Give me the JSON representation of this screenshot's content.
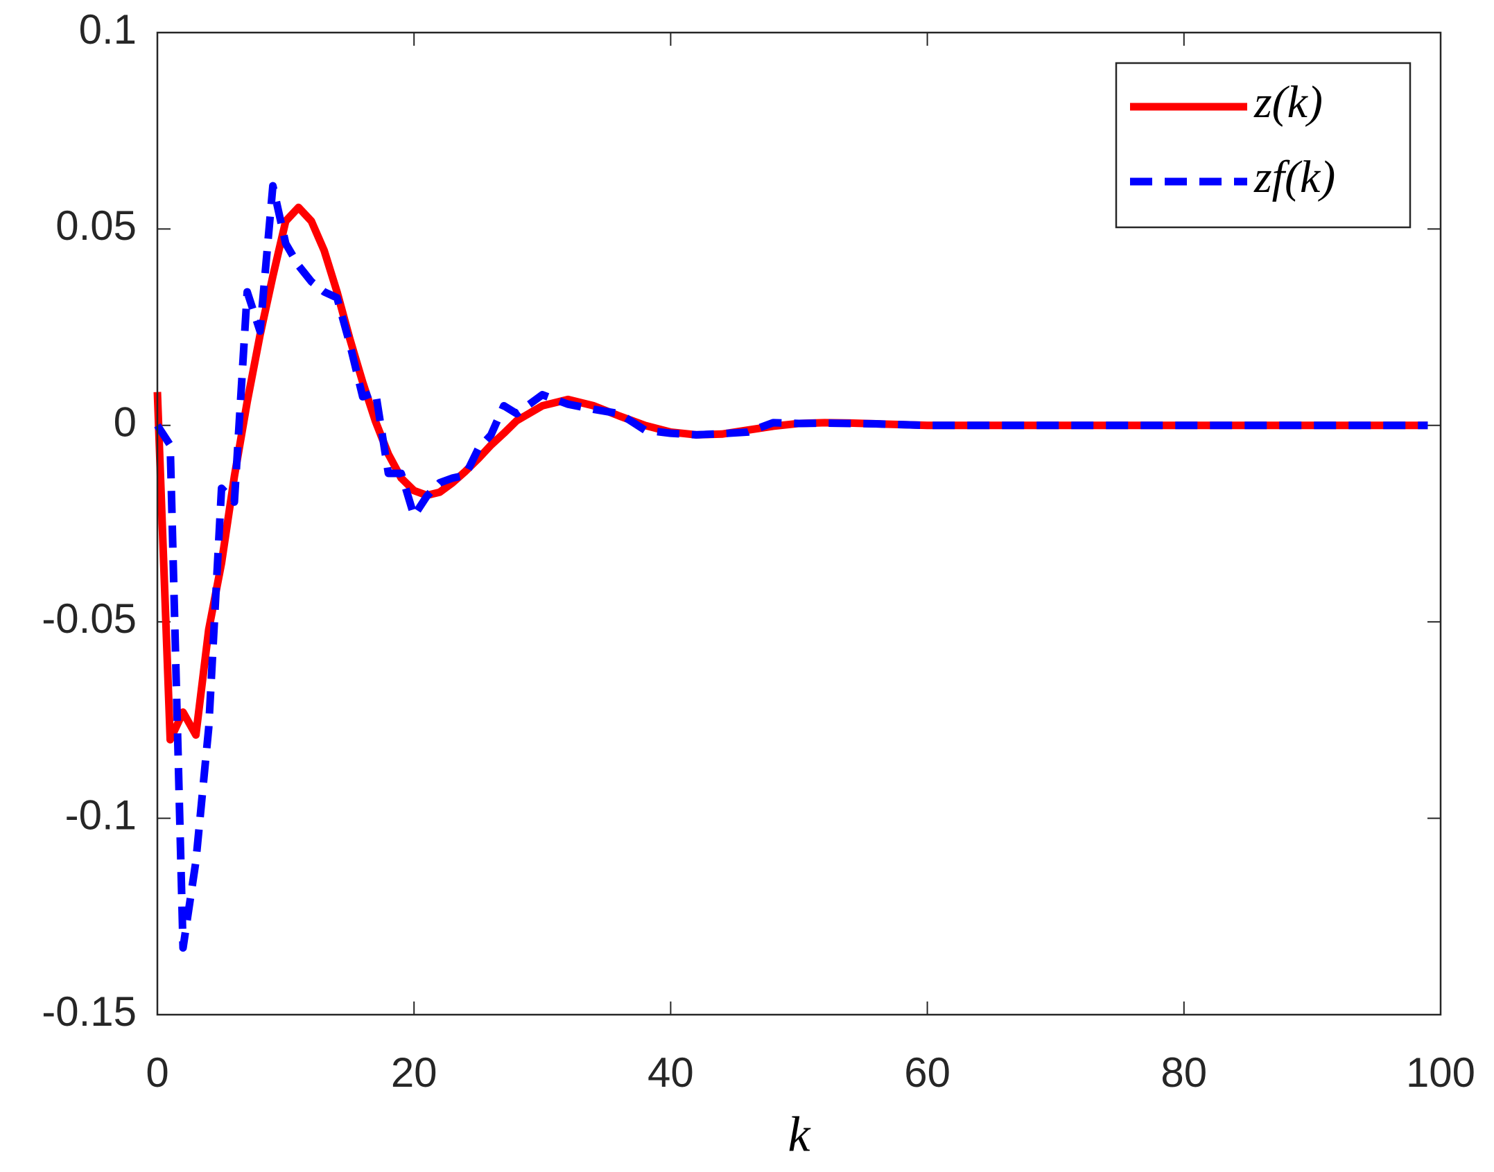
{
  "chart_data": {
    "type": "line",
    "xlabel": "k",
    "x": [
      0,
      1,
      2,
      3,
      4,
      5,
      6,
      7,
      8,
      9,
      10,
      11,
      12,
      13,
      14,
      15,
      16,
      17,
      18,
      19,
      20,
      21,
      22,
      23,
      24,
      25,
      26,
      27,
      28,
      30,
      32,
      34,
      36,
      38,
      40,
      42,
      44,
      46,
      48,
      50,
      52,
      54,
      56,
      58,
      60,
      70,
      80,
      90,
      99
    ],
    "series": [
      {
        "name": "z(k)",
        "color": "#ff0000",
        "dash": false,
        "values": [
          0.0085,
          -0.08,
          -0.073,
          -0.0788,
          -0.052,
          -0.035,
          -0.013,
          0.006,
          0.023,
          0.038,
          0.052,
          0.0555,
          0.052,
          0.0445,
          0.034,
          0.022,
          0.011,
          0.001,
          -0.0073,
          -0.0134,
          -0.0166,
          -0.0178,
          -0.017,
          -0.0146,
          -0.0117,
          -0.0085,
          -0.005,
          -0.002,
          0.0012,
          0.005,
          0.0066,
          0.005,
          0.0024,
          0,
          -0.0017,
          -0.0024,
          -0.0022,
          -0.0012,
          -0.0002,
          0.0005,
          0.0007,
          0.0006,
          0.0004,
          0.0002,
          0,
          0,
          0,
          0,
          0
        ]
      },
      {
        "name": "zf(k)",
        "color": "#0000ff",
        "dash": true,
        "values": [
          0,
          -0.005,
          -0.133,
          -0.111,
          -0.077,
          -0.016,
          -0.0195,
          0.034,
          0.024,
          0.061,
          0.0463,
          0.0407,
          0.0366,
          0.034,
          0.0325,
          0.0207,
          0.0073,
          0.0085,
          -0.0122,
          -0.0122,
          -0.023,
          -0.018,
          -0.0146,
          -0.0134,
          -0.0127,
          -0.006,
          -0.0024,
          0.005,
          0.003,
          0.0078,
          0.0054,
          0.0041,
          0.003,
          -0.0012,
          -0.002,
          -0.0024,
          -0.0021,
          -0.0017,
          0.0007,
          0.0005,
          0.0006,
          0.0005,
          0.0004,
          0.0002,
          0,
          0,
          0,
          0,
          0
        ]
      }
    ],
    "xlim": [
      0,
      100
    ],
    "xticks": [
      0,
      20,
      40,
      60,
      80,
      100
    ],
    "ylim": [
      -0.15,
      0.1
    ],
    "yticks": [
      -0.15,
      -0.1,
      -0.05,
      0,
      0.05,
      0.1
    ],
    "legend": "upper right",
    "grid": false
  }
}
